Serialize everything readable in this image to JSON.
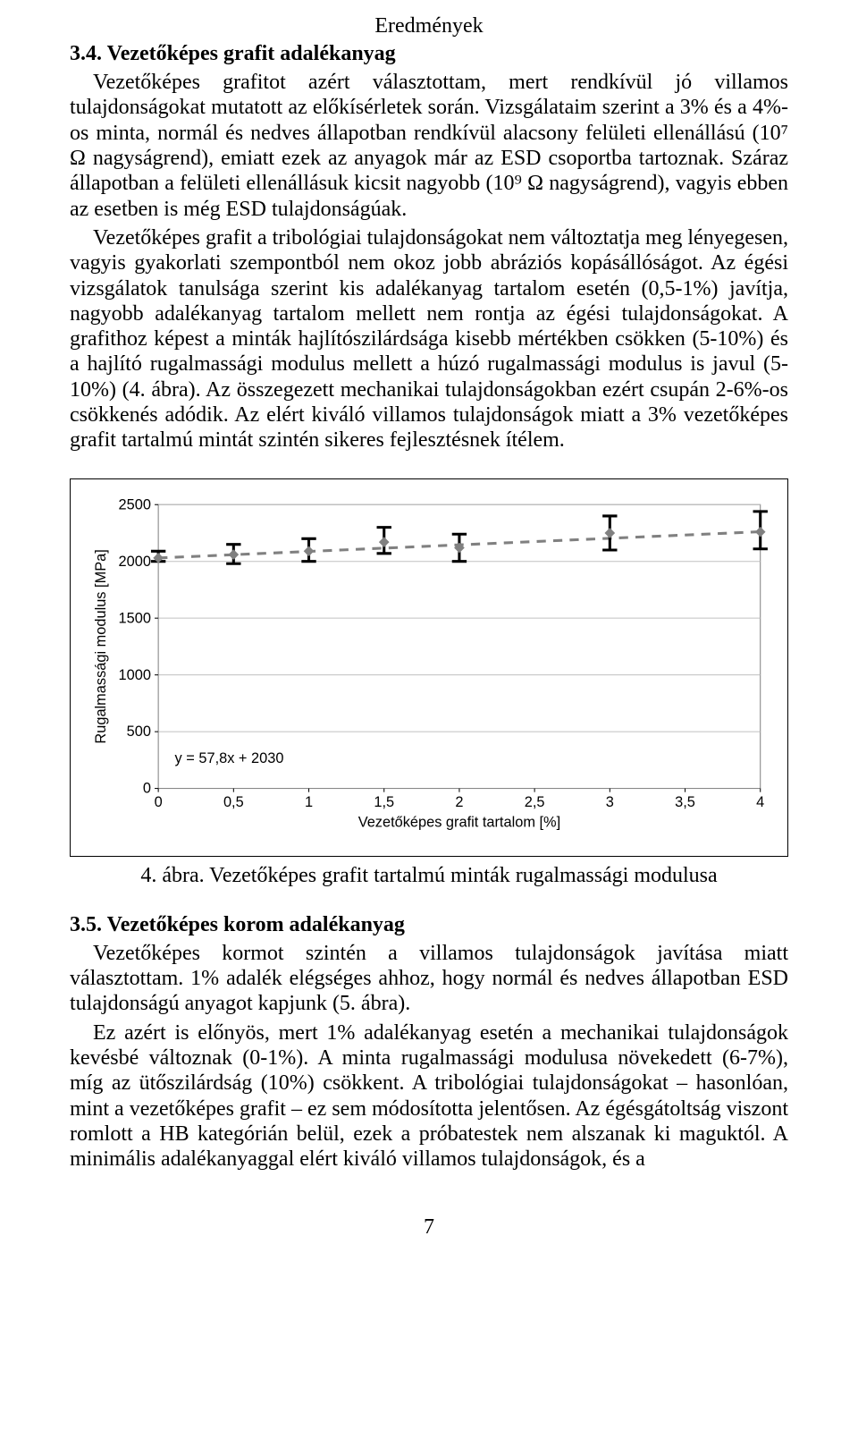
{
  "running_header": "Eredmények",
  "section34": {
    "num": "3.4.",
    "title": "Vezetőképes grafit adalékanyag"
  },
  "paragraph34": "Vezetőképes grafitot azért választottam, mert rendkívül jó villamos tulajdonságokat mutatott az előkísérletek során. Vizsgálataim szerint a 3% és a 4%-os minta, normál és nedves állapotban rendkívül alacsony felületi ellenállású (10⁷ Ω nagyságrend), emiatt ezek az anyagok már az ESD csoportba tartoznak. Száraz állapotban a felületi ellenállásuk kicsit nagyobb (10⁹ Ω nagyságrend), vagyis ebben az esetben is még ESD tulajdonságúak.",
  "paragraph34b": "Vezetőképes grafit a tribológiai tulajdonságokat nem változtatja meg lényegesen, vagyis gyakorlati szempontból nem okoz jobb abráziós kopásállóságot. Az égési vizsgálatok tanulsága szerint kis adalékanyag tartalom esetén (0,5-1%) javítja, nagyobb adalékanyag tartalom mellett nem rontja az égési tulajdonságokat. A grafithoz képest a minták hajlítószilárdsága kisebb mértékben csökken (5-10%) és a hajlító rugalmassági modulus mellett a húzó rugalmassági modulus is javul (5-10%) (4. ábra). Az összegezett mechanikai tulajdonságokban ezért csupán 2-6%-os csökkenés adódik. Az elért kiváló villamos tulajdonságok miatt a 3% vezetőképes grafit tartalmú mintát szintén sikeres fejlesztésnek ítélem.",
  "chart": {
    "type": "line_with_error",
    "ylabel": "Rugalmassági modulus [MPa]",
    "xlabel": "Vezetőképes grafit tartalom [%]",
    "equation": "y = 57,8x + 2030",
    "ylim": [
      0,
      2500
    ],
    "ytick_step": 500,
    "yticks": [
      "0",
      "500",
      "1000",
      "1500",
      "2000",
      "2500"
    ],
    "xlim": [
      0,
      4
    ],
    "xtick_step": 0.5,
    "xticks": [
      "0",
      "0,5",
      "1",
      "1,5",
      "2",
      "2,5",
      "3",
      "3,5",
      "4"
    ],
    "series": {
      "x": [
        0,
        0.5,
        1,
        1.5,
        2,
        3,
        4
      ],
      "y": [
        2030,
        2060,
        2090,
        2170,
        2120,
        2250,
        2260
      ],
      "err_lo": [
        2000,
        1980,
        2000,
        2070,
        2000,
        2100,
        2110
      ],
      "err_hi": [
        2090,
        2150,
        2200,
        2300,
        2240,
        2400,
        2440
      ]
    },
    "plot_area_bg": "#ffffff",
    "grid_color": "#c0c0c0",
    "border_color": "#808080",
    "marker_color": "#808080",
    "marker_size": 10,
    "line_color": "#808080",
    "line_width": 3,
    "dash": "10,8",
    "error_bar_color": "#000000",
    "error_bar_width": 3,
    "cap_width": 8,
    "label_fontsize": 16,
    "tick_fontsize": 16
  },
  "caption": "4. ábra. Vezetőképes grafit tartalmú minták rugalmassági modulusa",
  "section35": {
    "num": "3.5.",
    "title": "Vezetőképes korom adalékanyag"
  },
  "paragraph35a": "Vezetőképes kormot szintén a villamos tulajdonságok javítása miatt választottam. 1% adalék elégséges ahhoz, hogy normál és nedves állapotban ESD tulajdonságú anyagot kapjunk (5. ábra).",
  "paragraph35b": "Ez azért is előnyös, mert 1% adalékanyag esetén a mechanikai tulajdonságok kevésbé változnak (0-1%). A minta rugalmassági modulusa növekedett (6-7%), míg az ütőszilárdság (10%) csökkent. A tribológiai tulajdonságokat – hasonlóan, mint a vezetőképes grafit – ez sem módosította jelentősen. Az égésgátoltság viszont romlott a HB kategórián belül, ezek a próbatestek nem alszanak ki maguktól. A minimális adalékanyaggal elért kiváló villamos tulajdonságok, és a",
  "page_number": "7"
}
